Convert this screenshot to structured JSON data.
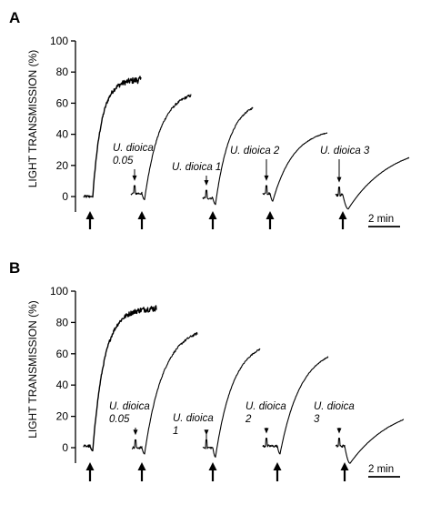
{
  "chart_data": [
    {
      "type": "line",
      "panel": "A",
      "ylabel": "LIGHT TRANSMISSION (%)",
      "ylim": [
        0,
        100
      ],
      "yticks": [
        0,
        20,
        40,
        60,
        80,
        100
      ],
      "scale_bar": "2 min",
      "traces": [
        {
          "label": "",
          "pre": 0,
          "dip": 0,
          "end": 75,
          "rate": 5.5,
          "noise": 3.2
        },
        {
          "label": "U. dioica 0.05",
          "label_lines": [
            "U. dioica",
            "0.05"
          ],
          "pre": 2,
          "dip": -2,
          "end": 65,
          "rate": 3.0,
          "noise": 1.4
        },
        {
          "label": "U. dioica 1",
          "label_lines": [
            "U. dioica 1"
          ],
          "pre": -1,
          "dip": -5,
          "end": 57,
          "rate": 2.6,
          "noise": 0.8
        },
        {
          "label": "U. dioica 2",
          "label_lines": [
            "U. dioica 2"
          ],
          "pre": 2,
          "dip": -3,
          "end": 41,
          "rate": 2.6,
          "noise": 0.4
        },
        {
          "label": "U. dioica 3",
          "label_lines": [
            "U. dioica 3"
          ],
          "pre": 1,
          "dip": -8,
          "end": 25,
          "rate": 1.4,
          "noise": 0.2
        }
      ]
    },
    {
      "type": "line",
      "panel": "B",
      "ylabel": "LIGHT TRANSMISSION (%)",
      "ylim": [
        0,
        100
      ],
      "yticks": [
        0,
        20,
        40,
        60,
        80,
        100
      ],
      "scale_bar": "2 min",
      "traces": [
        {
          "label": "",
          "pre": 1,
          "dip": -2,
          "end": 89,
          "rate": 5.5,
          "noise": 3.0
        },
        {
          "label": "U. dioica 0.05",
          "label_lines": [
            "U. dioica",
            "0.05"
          ],
          "pre": 0,
          "dip": -4,
          "end": 73,
          "rate": 2.8,
          "noise": 1.2
        },
        {
          "label": "U. dioica 1",
          "label_lines": [
            "U. dioica",
            "1"
          ],
          "pre": 0,
          "dip": -6,
          "end": 63,
          "rate": 2.5,
          "noise": 0.7
        },
        {
          "label": "U. dioica 2",
          "label_lines": [
            "U. dioica",
            "2"
          ],
          "pre": 1,
          "dip": -4,
          "end": 58,
          "rate": 2.3,
          "noise": 0.4
        },
        {
          "label": "U. dioica 3",
          "label_lines": [
            "U. dioica",
            "3"
          ],
          "pre": 1,
          "dip": -10,
          "end": 18,
          "rate": 1.2,
          "noise": 0.2
        }
      ]
    }
  ]
}
